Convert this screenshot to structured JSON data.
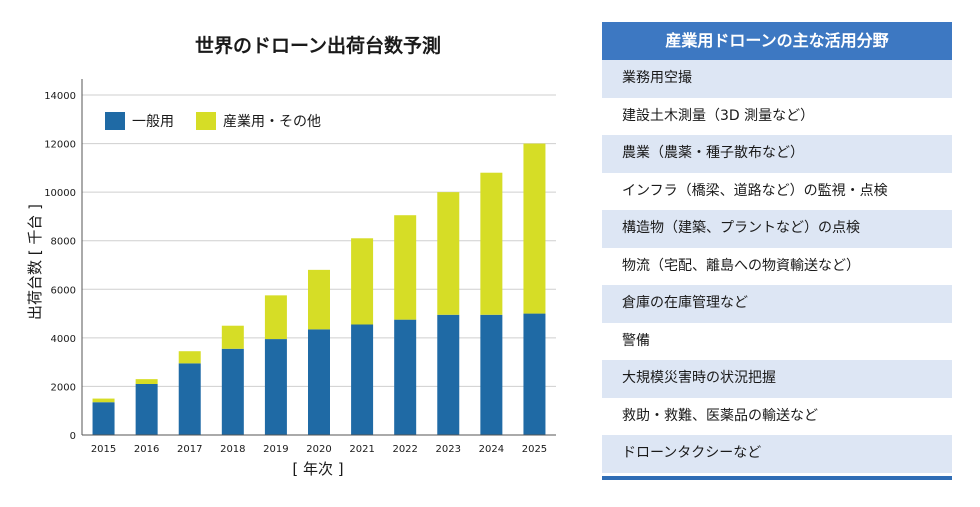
{
  "chart_data": {
    "type": "bar",
    "stacked": true,
    "title": "世界のドローン出荷台数予測",
    "xlabel": "[ 年次 ]",
    "ylabel": "出荷台数 [ 千台 ]",
    "categories": [
      "2015",
      "2016",
      "2017",
      "2018",
      "2019",
      "2020",
      "2021",
      "2022",
      "2023",
      "2024",
      "2025"
    ],
    "series": [
      {
        "name": "一般用",
        "color": "#1f6aa5",
        "values": [
          1350,
          2100,
          2950,
          3550,
          3950,
          4350,
          4550,
          4750,
          4950,
          4950,
          5000
        ]
      },
      {
        "name": "産業用・その他",
        "color": "#d6dd26",
        "values": [
          150,
          200,
          500,
          950,
          1800,
          2450,
          3550,
          4300,
          5050,
          5850,
          7000
        ]
      }
    ],
    "ylim": [
      0,
      14000
    ],
    "yticks": [
      0,
      2000,
      4000,
      6000,
      8000,
      10000,
      12000,
      14000
    ],
    "grid": true,
    "legend": "top-left"
  },
  "panel": {
    "title": "産業用ドローンの主な活用分野",
    "items": [
      "業務用空撮",
      "建設土木測量（3D 測量など）",
      "農業（農薬・種子散布など）",
      "インフラ（橋梁、道路など）の監視・点検",
      "構造物（建築、プラントなど）の点検",
      "物流（宅配、離島への物資輸送など）",
      "倉庫の在庫管理など",
      "警備",
      "大規模災害時の状況把握",
      "救助・救難、医薬品の輸送など",
      "ドローンタクシーなど"
    ]
  }
}
